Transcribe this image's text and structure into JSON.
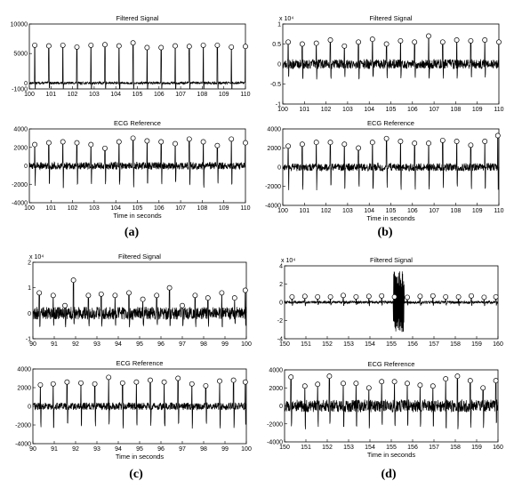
{
  "panel_labels": [
    "(a)",
    "(b)",
    "(c)",
    "(d)"
  ],
  "chart_data": [
    {
      "panel": "a",
      "type": "line",
      "title": "Filtered Signal",
      "xlabel": "",
      "exponent": "",
      "xlim": [
        100,
        110
      ],
      "ylim": [
        -1000,
        10000
      ],
      "yticks": [
        -1000,
        0,
        5000,
        10000
      ],
      "xticks": [
        100,
        101,
        102,
        103,
        104,
        105,
        106,
        107,
        108,
        109,
        110
      ],
      "baseline": 0,
      "noise": 200,
      "trough": -1100,
      "peaks_x": [
        100.25,
        100.9,
        101.55,
        102.2,
        102.85,
        103.5,
        104.15,
        104.8,
        105.45,
        106.1,
        106.75,
        107.4,
        108.05,
        108.7,
        109.35,
        110
      ],
      "peaks_y": [
        6400,
        6300,
        6400,
        6100,
        6400,
        6500,
        6300,
        6800,
        6000,
        6000,
        6300,
        6200,
        6400,
        6400,
        6100,
        6200
      ]
    },
    {
      "panel": "a",
      "type": "line",
      "title": "ECG Reference",
      "xlabel": "Time in seconds",
      "exponent": "",
      "xlim": [
        100,
        110
      ],
      "ylim": [
        -4000,
        4000
      ],
      "yticks": [
        -4000,
        -2000,
        0,
        2000,
        4000
      ],
      "xticks": [
        100,
        101,
        102,
        103,
        104,
        105,
        106,
        107,
        108,
        109,
        110
      ],
      "baseline": 0,
      "noise": 400,
      "trough": -2200,
      "peaks_x": [
        100.25,
        100.9,
        101.55,
        102.2,
        102.85,
        103.5,
        104.15,
        104.8,
        105.45,
        106.1,
        106.75,
        107.4,
        108.05,
        108.7,
        109.35,
        110
      ],
      "peaks_y": [
        2300,
        2500,
        2600,
        2500,
        2300,
        1900,
        2600,
        3000,
        2700,
        2600,
        2400,
        2900,
        2600,
        2200,
        2900,
        2500
      ]
    },
    {
      "panel": "b",
      "type": "line",
      "title": "Filtered Signal",
      "xlabel": "",
      "exponent": "x 10⁴",
      "xlim": [
        100,
        110
      ],
      "ylim": [
        -1,
        1
      ],
      "yticks": [
        -1,
        -0.5,
        0,
        0.5,
        1
      ],
      "xticks": [
        100,
        101,
        102,
        103,
        104,
        105,
        106,
        107,
        108,
        109,
        110
      ],
      "baseline": 0,
      "noise": 0.12,
      "trough": -0.35,
      "peaks_x": [
        100.25,
        100.9,
        101.55,
        102.2,
        102.85,
        103.5,
        104.15,
        104.8,
        105.45,
        106.1,
        106.75,
        107.4,
        108.05,
        108.7,
        109.35,
        110
      ],
      "peaks_y": [
        0.55,
        0.5,
        0.52,
        0.6,
        0.45,
        0.55,
        0.62,
        0.5,
        0.58,
        0.55,
        0.7,
        0.55,
        0.6,
        0.58,
        0.6,
        0.55
      ]
    },
    {
      "panel": "b",
      "type": "line",
      "title": "ECG Reference",
      "xlabel": "Time in seconds",
      "exponent": "",
      "xlim": [
        100,
        110
      ],
      "ylim": [
        -4000,
        4000
      ],
      "yticks": [
        -4000,
        -2000,
        0,
        2000,
        4000
      ],
      "xticks": [
        100,
        101,
        102,
        103,
        104,
        105,
        106,
        107,
        108,
        109,
        110
      ],
      "baseline": 0,
      "noise": 400,
      "trough": -2200,
      "peaks_x": [
        100.25,
        100.9,
        101.55,
        102.2,
        102.85,
        103.5,
        104.15,
        104.8,
        105.45,
        106.1,
        106.75,
        107.4,
        108.05,
        108.7,
        109.35,
        109.95
      ],
      "peaks_y": [
        2200,
        2400,
        2600,
        2600,
        2400,
        2000,
        2600,
        3000,
        2700,
        2500,
        2500,
        2800,
        2700,
        2300,
        2700,
        3300
      ]
    },
    {
      "panel": "c",
      "type": "line",
      "title": "Filtered Signal",
      "xlabel": "",
      "exponent": "x 10⁴",
      "xlim": [
        90,
        100
      ],
      "ylim": [
        -1,
        2
      ],
      "yticks": [
        -1,
        0,
        1,
        2
      ],
      "xticks": [
        90,
        91,
        92,
        93,
        94,
        95,
        96,
        97,
        98,
        99,
        100
      ],
      "baseline": 0,
      "noise": 0.25,
      "trough": -0.5,
      "peaks_x": [
        90.3,
        90.95,
        91.5,
        91.9,
        92.6,
        93.2,
        93.85,
        94.5,
        95.15,
        95.8,
        96.4,
        97,
        97.6,
        98.2,
        98.85,
        99.45,
        99.95
      ],
      "peaks_y": [
        0.8,
        0.7,
        0.3,
        1.3,
        0.7,
        0.75,
        0.7,
        0.8,
        0.55,
        0.7,
        1,
        0.3,
        0.7,
        0.6,
        0.8,
        0.6,
        0.9
      ]
    },
    {
      "panel": "c",
      "type": "line",
      "title": "ECG Reference",
      "xlabel": "Time in seconds",
      "exponent": "",
      "xlim": [
        90,
        100
      ],
      "ylim": [
        -4000,
        4000
      ],
      "yticks": [
        -4000,
        -2000,
        0,
        2000,
        4000
      ],
      "xticks": [
        90,
        91,
        92,
        93,
        94,
        95,
        96,
        97,
        98,
        99,
        100
      ],
      "baseline": 0,
      "noise": 400,
      "trough": -2200,
      "peaks_x": [
        90.35,
        90.95,
        91.6,
        92.25,
        92.9,
        93.55,
        94.2,
        94.85,
        95.5,
        96.15,
        96.8,
        97.45,
        98.1,
        98.75,
        99.4,
        99.95
      ],
      "peaks_y": [
        2300,
        2400,
        2600,
        2500,
        2400,
        3100,
        2500,
        2600,
        2800,
        2600,
        3000,
        2400,
        2200,
        2700,
        2800,
        2600
      ]
    },
    {
      "panel": "d",
      "type": "line",
      "title": "Filtered Signal",
      "xlabel": "",
      "exponent": "x 10⁴",
      "xlim": [
        150,
        160
      ],
      "ylim": [
        -4,
        4
      ],
      "yticks": [
        -4,
        -2,
        0,
        2,
        4
      ],
      "xticks": [
        150,
        151,
        152,
        153,
        154,
        155,
        156,
        157,
        158,
        159,
        160
      ],
      "baseline": 0,
      "noise": 0.15,
      "trough": -0.35,
      "burst_x": [
        155.1,
        155.6
      ],
      "burst_amp": 3.4,
      "peaks_x": [
        150.35,
        150.95,
        151.55,
        152.15,
        152.75,
        153.35,
        153.95,
        154.55,
        155.15,
        155.75,
        156.35,
        156.95,
        157.55,
        158.15,
        158.75,
        159.35,
        159.9
      ],
      "peaks_y": [
        0.6,
        0.65,
        0.6,
        0.6,
        0.75,
        0.6,
        0.65,
        0.7,
        0.6,
        0.55,
        0.65,
        0.7,
        0.6,
        0.6,
        0.7,
        0.55,
        0.6
      ]
    },
    {
      "panel": "d",
      "type": "line",
      "title": "ECG Reference",
      "xlabel": "Time in seconds",
      "exponent": "",
      "xlim": [
        150,
        160
      ],
      "ylim": [
        -4000,
        4000
      ],
      "yticks": [
        -4000,
        -2000,
        0,
        2000,
        4000
      ],
      "xticks": [
        150,
        151,
        152,
        153,
        154,
        155,
        156,
        157,
        158,
        159,
        160
      ],
      "baseline": 0,
      "noise": 700,
      "trough": -2400,
      "peaks_x": [
        150.3,
        150.95,
        151.55,
        152.1,
        152.75,
        153.35,
        153.95,
        154.55,
        155.15,
        155.75,
        156.35,
        156.95,
        157.55,
        158.1,
        158.7,
        159.3,
        159.9
      ],
      "peaks_y": [
        3200,
        2200,
        2400,
        3300,
        2500,
        2500,
        2000,
        2700,
        2700,
        2500,
        2300,
        2200,
        3000,
        3300,
        2800,
        2000,
        2800
      ]
    }
  ]
}
